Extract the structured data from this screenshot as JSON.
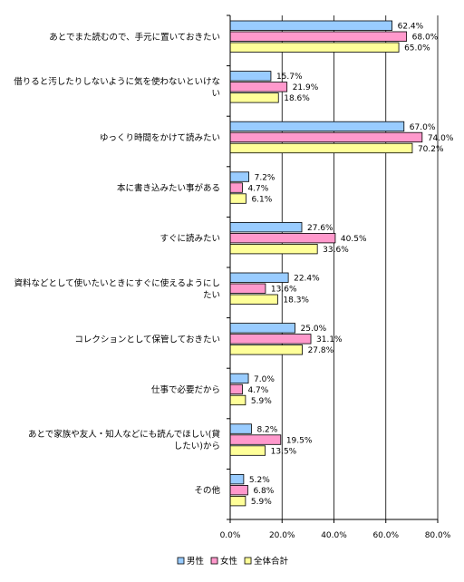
{
  "chart_data": {
    "type": "bar",
    "orientation": "horizontal",
    "title": "",
    "xlabel": "",
    "ylabel": "",
    "xlim": [
      0,
      80
    ],
    "xticks": [
      "0.0%",
      "20.0%",
      "40.0%",
      "60.0%",
      "80.0%"
    ],
    "grid": true,
    "legend_position": "bottom",
    "categories": [
      [
        "あとでまた読むので、手元に置いておきたい"
      ],
      [
        "借りると汚したりしないように気を使わないといけな",
        "い"
      ],
      [
        "ゆっくり時間をかけて読みたい"
      ],
      [
        "本に書き込みたい事がある"
      ],
      [
        "すぐに読みたい"
      ],
      [
        "資料などとして使いたいときにすぐに使えるようにし",
        "たい"
      ],
      [
        "コレクションとして保管しておきたい"
      ],
      [
        "仕事で必要だから"
      ],
      [
        "あとで家族や友人・知人などにも読んでほしい(貸",
        "したい)から"
      ],
      [
        "その他"
      ]
    ],
    "series": [
      {
        "name": "男性",
        "color": "#99ccff",
        "values": [
          62.4,
          15.7,
          67.0,
          7.2,
          27.6,
          22.4,
          25.0,
          7.0,
          8.2,
          5.2
        ],
        "labels": [
          "62.4%",
          "15.7%",
          "67.0%",
          "7.2%",
          "27.6%",
          "22.4%",
          "25.0%",
          "7.0%",
          "8.2%",
          "5.2%"
        ]
      },
      {
        "name": "女性",
        "color": "#ff99cc",
        "values": [
          68.0,
          21.9,
          74.0,
          4.7,
          40.5,
          13.6,
          31.1,
          4.7,
          19.5,
          6.8
        ],
        "labels": [
          "68.0%",
          "21.9%",
          "74.0%",
          "4.7%",
          "40.5%",
          "13.6%",
          "31.1%",
          "4.7%",
          "19.5%",
          "6.8%"
        ]
      },
      {
        "name": "全体合計",
        "color": "#ffff99",
        "values": [
          65.0,
          18.6,
          70.2,
          6.1,
          33.6,
          18.3,
          27.8,
          5.9,
          13.5,
          5.9
        ],
        "labels": [
          "65.0%",
          "18.6%",
          "70.2%",
          "6.1%",
          "33.6%",
          "18.3%",
          "27.8%",
          "5.9%",
          "13.5%",
          "5.9%"
        ]
      }
    ]
  }
}
